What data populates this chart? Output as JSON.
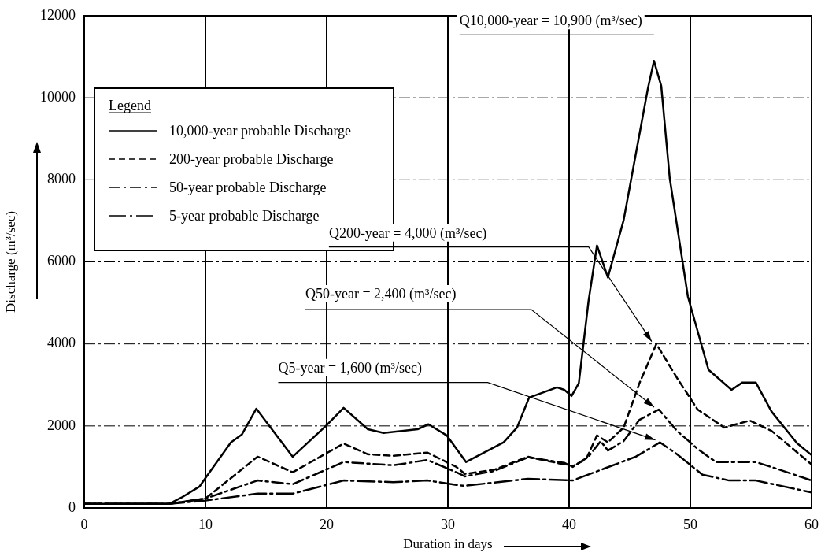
{
  "chart_data": {
    "type": "line",
    "xlabel": "Duration in days",
    "ylabel": "Discharge (m³/sec)",
    "legend_title": "Legend",
    "legend": "top left",
    "grid": true,
    "marker": "none",
    "xlim": [
      0,
      60
    ],
    "xticks": [
      0,
      10,
      20,
      30,
      40,
      50,
      60
    ],
    "ylim": [
      0,
      12000
    ],
    "yticks": [
      0,
      2000,
      4000,
      6000,
      8000,
      10000,
      12000
    ],
    "series": [
      {
        "name": "10,000-year probable Discharge",
        "color": "#000000",
        "line_style": "solid",
        "x": [
          0,
          7,
          8,
          9.5,
          10,
          12.1,
          13,
          14.2,
          17.2,
          20,
          21.4,
          23.4,
          24.7,
          27.5,
          28.4,
          29.9,
          31.5,
          34.6,
          35.7,
          36.7,
          39,
          39.6,
          40.2,
          40.8,
          41.6,
          42.3,
          43.2,
          44.5,
          46.5,
          47,
          47.6,
          48.3,
          49.8,
          51.5,
          53.4,
          54.3,
          55.4,
          56.7,
          58.8,
          60
        ],
        "values": [
          100,
          100,
          250,
          520,
          730,
          1600,
          1790,
          2420,
          1250,
          2020,
          2440,
          1920,
          1830,
          1920,
          2040,
          1770,
          1120,
          1600,
          1960,
          2690,
          2940,
          2880,
          2730,
          3040,
          5040,
          6400,
          5620,
          7020,
          10230,
          10900,
          10290,
          8040,
          5150,
          3370,
          2880,
          3060,
          3060,
          2350,
          1580,
          1290
        ]
      },
      {
        "name": "200-year probable Discharge",
        "color": "#000000",
        "line_style": "dashed",
        "x": [
          0,
          7,
          10,
          14.3,
          17.2,
          21.4,
          23.4,
          25.5,
          28.3,
          30.7,
          31.4,
          33.8,
          36.6,
          39.6,
          40.3,
          41.4,
          42.3,
          43.2,
          44.5,
          45.8,
          47.2,
          48.9,
          50.6,
          52.8,
          54.9,
          56.7,
          60
        ],
        "values": [
          100,
          100,
          230,
          1250,
          870,
          1570,
          1310,
          1270,
          1350,
          1000,
          830,
          930,
          1250,
          1060,
          1020,
          1190,
          1770,
          1600,
          1960,
          3040,
          4000,
          3170,
          2400,
          1960,
          2130,
          1880,
          1060
        ]
      },
      {
        "name": "50-year probable Discharge",
        "color": "#000000",
        "line_style": "dashdot",
        "x": [
          0,
          7,
          10,
          14.3,
          17.2,
          21.4,
          25.5,
          28.3,
          30.7,
          31.4,
          33.8,
          36.6,
          39.6,
          40.3,
          41.6,
          42.6,
          43.2,
          44.5,
          45.8,
          47.4,
          48.9,
          50.6,
          52.1,
          55.4,
          57.5,
          60
        ],
        "values": [
          100,
          100,
          230,
          670,
          580,
          1120,
          1040,
          1170,
          870,
          770,
          900,
          1230,
          1100,
          1000,
          1250,
          1630,
          1400,
          1630,
          2150,
          2400,
          1880,
          1440,
          1120,
          1120,
          920,
          670
        ]
      },
      {
        "name": "5-year probable Discharge",
        "color": "#000000",
        "line_style": "longdashdot",
        "x": [
          0,
          7,
          10,
          14.3,
          17.2,
          21.4,
          25.5,
          28.3,
          30.7,
          31.4,
          36.6,
          40.3,
          42.9,
          45.5,
          47.5,
          48.9,
          51,
          53.2,
          55.4,
          60
        ],
        "values": [
          100,
          100,
          180,
          350,
          350,
          670,
          630,
          670,
          560,
          540,
          710,
          670,
          960,
          1250,
          1600,
          1310,
          810,
          670,
          670,
          380
        ]
      }
    ],
    "annotations": [
      {
        "text": "Q10,000-year = 10,900 (m³/sec)",
        "x": 47,
        "y": 10900
      },
      {
        "text": "Q200-year = 4,000 (m³/sec)",
        "x": 47.2,
        "y": 4000
      },
      {
        "text": "Q50-year = 2,400 (m³/sec)",
        "x": 47.4,
        "y": 2400
      },
      {
        "text": "Q5-year = 1,600 (m³/sec)",
        "x": 47.5,
        "y": 1600
      }
    ]
  }
}
